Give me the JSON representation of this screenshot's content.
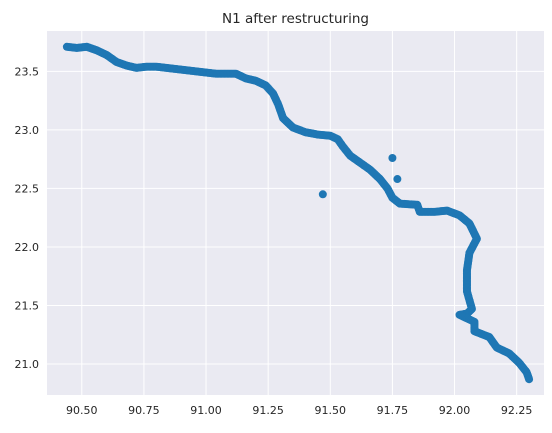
{
  "chart_data": {
    "type": "scatter",
    "title": "N1 after restructuring",
    "xlabel": "",
    "ylabel": "",
    "xlim": [
      90.36,
      92.36
    ],
    "ylim": [
      20.735,
      23.845
    ],
    "xticks": [
      "90.50",
      "90.75",
      "91.00",
      "91.25",
      "91.50",
      "91.75",
      "92.00",
      "92.25"
    ],
    "yticks": [
      "21.0",
      "21.5",
      "22.0",
      "22.5",
      "23.0",
      "23.5"
    ],
    "grid": true,
    "legend": "none",
    "background_color": "#eaeaf2",
    "point_color": "#1f77b4",
    "path_points": [
      [
        90.44,
        23.71
      ],
      [
        90.48,
        23.7
      ],
      [
        90.52,
        23.71
      ],
      [
        90.56,
        23.68
      ],
      [
        90.6,
        23.64
      ],
      [
        90.64,
        23.58
      ],
      [
        90.68,
        23.55
      ],
      [
        90.72,
        23.53
      ],
      [
        90.76,
        23.54
      ],
      [
        90.8,
        23.54
      ],
      [
        90.84,
        23.53
      ],
      [
        90.88,
        23.52
      ],
      [
        90.92,
        23.51
      ],
      [
        90.96,
        23.5
      ],
      [
        91.0,
        23.49
      ],
      [
        91.04,
        23.48
      ],
      [
        91.08,
        23.48
      ],
      [
        91.12,
        23.48
      ],
      [
        91.16,
        23.44
      ],
      [
        91.2,
        23.42
      ],
      [
        91.24,
        23.38
      ],
      [
        91.27,
        23.31
      ],
      [
        91.29,
        23.22
      ],
      [
        91.31,
        23.1
      ],
      [
        91.35,
        23.02
      ],
      [
        91.4,
        22.98
      ],
      [
        91.45,
        22.96
      ],
      [
        91.5,
        22.95
      ],
      [
        91.53,
        22.92
      ],
      [
        91.55,
        22.86
      ],
      [
        91.58,
        22.78
      ],
      [
        91.62,
        22.72
      ],
      [
        91.66,
        22.66
      ],
      [
        91.7,
        22.58
      ],
      [
        91.73,
        22.5
      ],
      [
        91.75,
        22.42
      ],
      [
        91.78,
        22.37
      ],
      [
        91.85,
        22.36
      ],
      [
        91.86,
        22.3
      ],
      [
        91.92,
        22.3
      ],
      [
        91.97,
        22.31
      ],
      [
        92.02,
        22.27
      ],
      [
        92.06,
        22.2
      ],
      [
        92.09,
        22.07
      ],
      [
        92.06,
        21.95
      ],
      [
        92.05,
        21.8
      ],
      [
        92.05,
        21.62
      ],
      [
        92.07,
        21.47
      ],
      [
        92.05,
        21.43
      ],
      [
        92.02,
        21.42
      ],
      [
        92.08,
        21.36
      ],
      [
        92.08,
        21.28
      ],
      [
        92.14,
        21.23
      ],
      [
        92.17,
        21.14
      ],
      [
        92.22,
        21.09
      ],
      [
        92.26,
        21.01
      ],
      [
        92.29,
        20.93
      ],
      [
        92.3,
        20.87
      ]
    ],
    "outliers": [
      [
        91.47,
        22.45
      ],
      [
        91.75,
        22.76
      ],
      [
        91.77,
        22.58
      ]
    ]
  }
}
